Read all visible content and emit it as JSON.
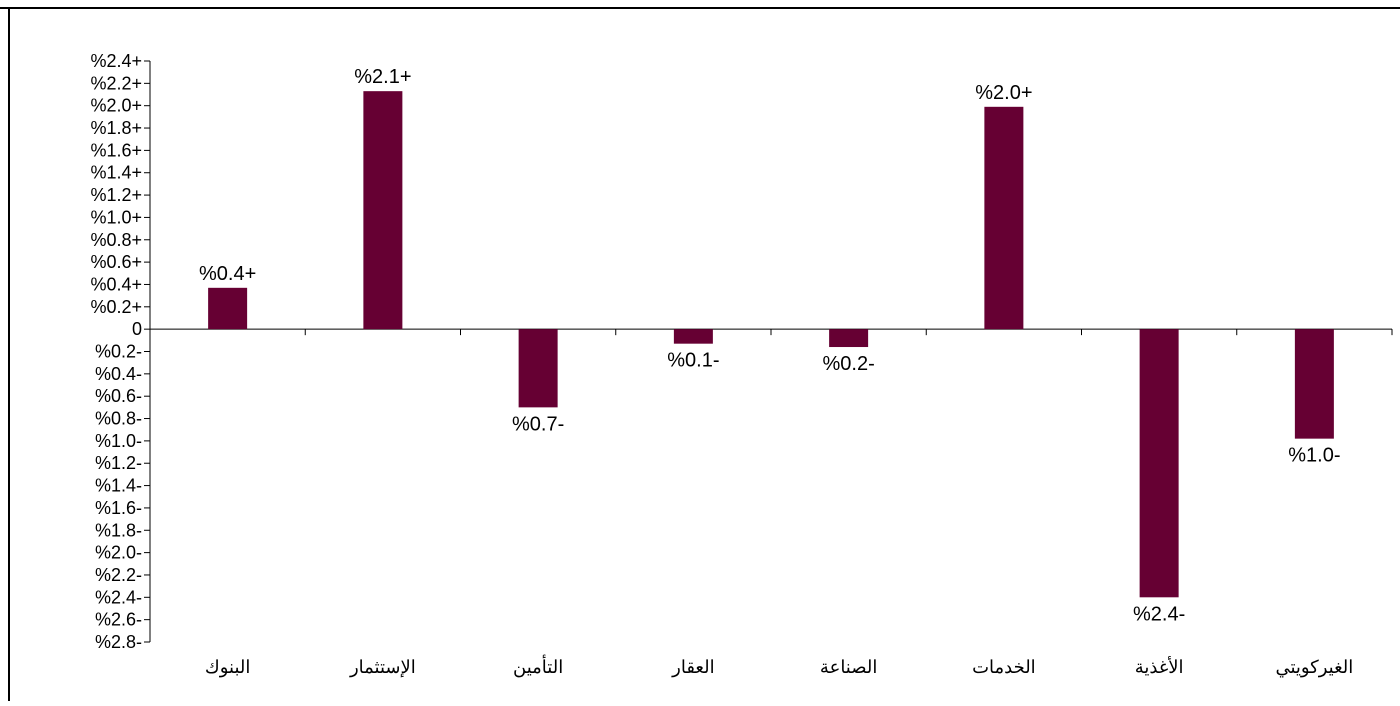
{
  "chart_data": {
    "type": "bar",
    "categories": [
      "البنوك",
      "الإستثمار",
      "التأمين",
      "العقار",
      "الصناعة",
      "الخدمات",
      "الأغذية",
      "الغيركويتي"
    ],
    "values": [
      0.37,
      2.13,
      -0.7,
      -0.13,
      -0.16,
      1.99,
      -2.4,
      -0.98
    ],
    "data_labels": [
      "%0.4+",
      "%2.1+",
      "%0.7-",
      "%0.1-",
      "%0.2-",
      "%2.0+",
      "%2.4-",
      "%1.0-"
    ],
    "y_ticks": [
      {
        "value": 2.4,
        "label": "%2.4+"
      },
      {
        "value": 2.2,
        "label": "%2.2+"
      },
      {
        "value": 2.0,
        "label": "%2.0+"
      },
      {
        "value": 1.8,
        "label": "%1.8+"
      },
      {
        "value": 1.6,
        "label": "%1.6+"
      },
      {
        "value": 1.4,
        "label": "%1.4+"
      },
      {
        "value": 1.2,
        "label": "%1.2+"
      },
      {
        "value": 1.0,
        "label": "%1.0+"
      },
      {
        "value": 0.8,
        "label": "%0.8+"
      },
      {
        "value": 0.6,
        "label": "%0.6+"
      },
      {
        "value": 0.4,
        "label": "%0.4+"
      },
      {
        "value": 0.2,
        "label": "%0.2+"
      },
      {
        "value": 0,
        "label": "0"
      },
      {
        "value": -0.2,
        "label": "%0.2-"
      },
      {
        "value": -0.4,
        "label": "%0.4-"
      },
      {
        "value": -0.6,
        "label": "%0.6-"
      },
      {
        "value": -0.8,
        "label": "%0.8-"
      },
      {
        "value": -1.0,
        "label": "%1.0-"
      },
      {
        "value": -1.2,
        "label": "%1.2-"
      },
      {
        "value": -1.4,
        "label": "%1.4-"
      },
      {
        "value": -1.6,
        "label": "%1.6-"
      },
      {
        "value": -1.8,
        "label": "%1.8-"
      },
      {
        "value": -2.0,
        "label": "%2.0-"
      },
      {
        "value": -2.2,
        "label": "%2.2-"
      },
      {
        "value": -2.4,
        "label": "%2.4-"
      },
      {
        "value": -2.6,
        "label": "%2.6-"
      },
      {
        "value": -2.8,
        "label": "%2.8-"
      }
    ],
    "ylim": [
      -2.8,
      2.4
    ],
    "grid": false,
    "bar_color": "#660033"
  }
}
